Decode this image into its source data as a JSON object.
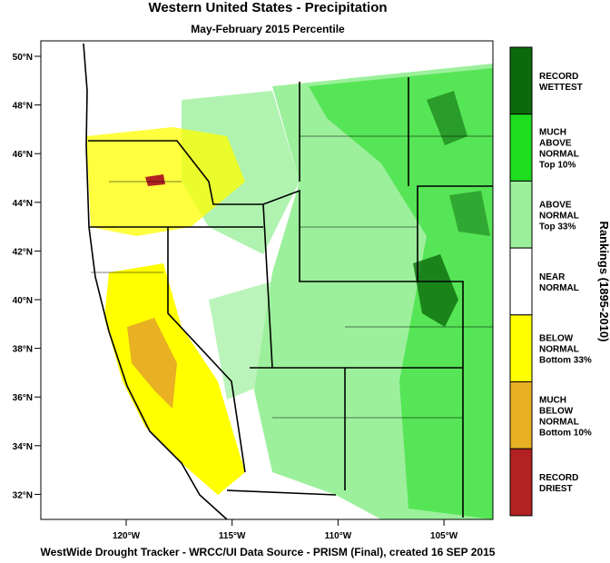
{
  "header": {
    "title": "Western United States - Precipitation",
    "subtitle": "May-February 2015 Percentile"
  },
  "map": {
    "lat_labels": [
      "50°N",
      "48°N",
      "46°N",
      "44°N",
      "42°N",
      "40°N",
      "38°N",
      "36°N",
      "34°N",
      "32°N"
    ],
    "lon_labels": [
      "120°W",
      "115°W",
      "110°W",
      "105°W"
    ]
  },
  "legend": {
    "title": "Rankings (1895-2010)",
    "items": [
      {
        "lines": [
          "RECORD",
          "WETTEST"
        ],
        "color": "#0b6b0b"
      },
      {
        "lines": [
          "MUCH",
          "ABOVE",
          "NORMAL",
          "Top 10%"
        ],
        "color": "#1edc1e"
      },
      {
        "lines": [
          "ABOVE",
          "NORMAL",
          "Top 33%"
        ],
        "color": "#9cf09c"
      },
      {
        "lines": [
          "NEAR",
          "NORMAL"
        ],
        "color": "#ffffff"
      },
      {
        "lines": [
          "BELOW",
          "NORMAL",
          "Bottom 33%"
        ],
        "color": "#ffff00"
      },
      {
        "lines": [
          "MUCH",
          "BELOW",
          "NORMAL",
          "Bottom 10%"
        ],
        "color": "#e8b022"
      },
      {
        "lines": [
          "RECORD",
          "DRIEST"
        ],
        "color": "#b22222"
      }
    ]
  },
  "footer": "WestWide Drought Tracker - WRCC/UI  Data Source - PRISM (Final), created 16 SEP 2015"
}
